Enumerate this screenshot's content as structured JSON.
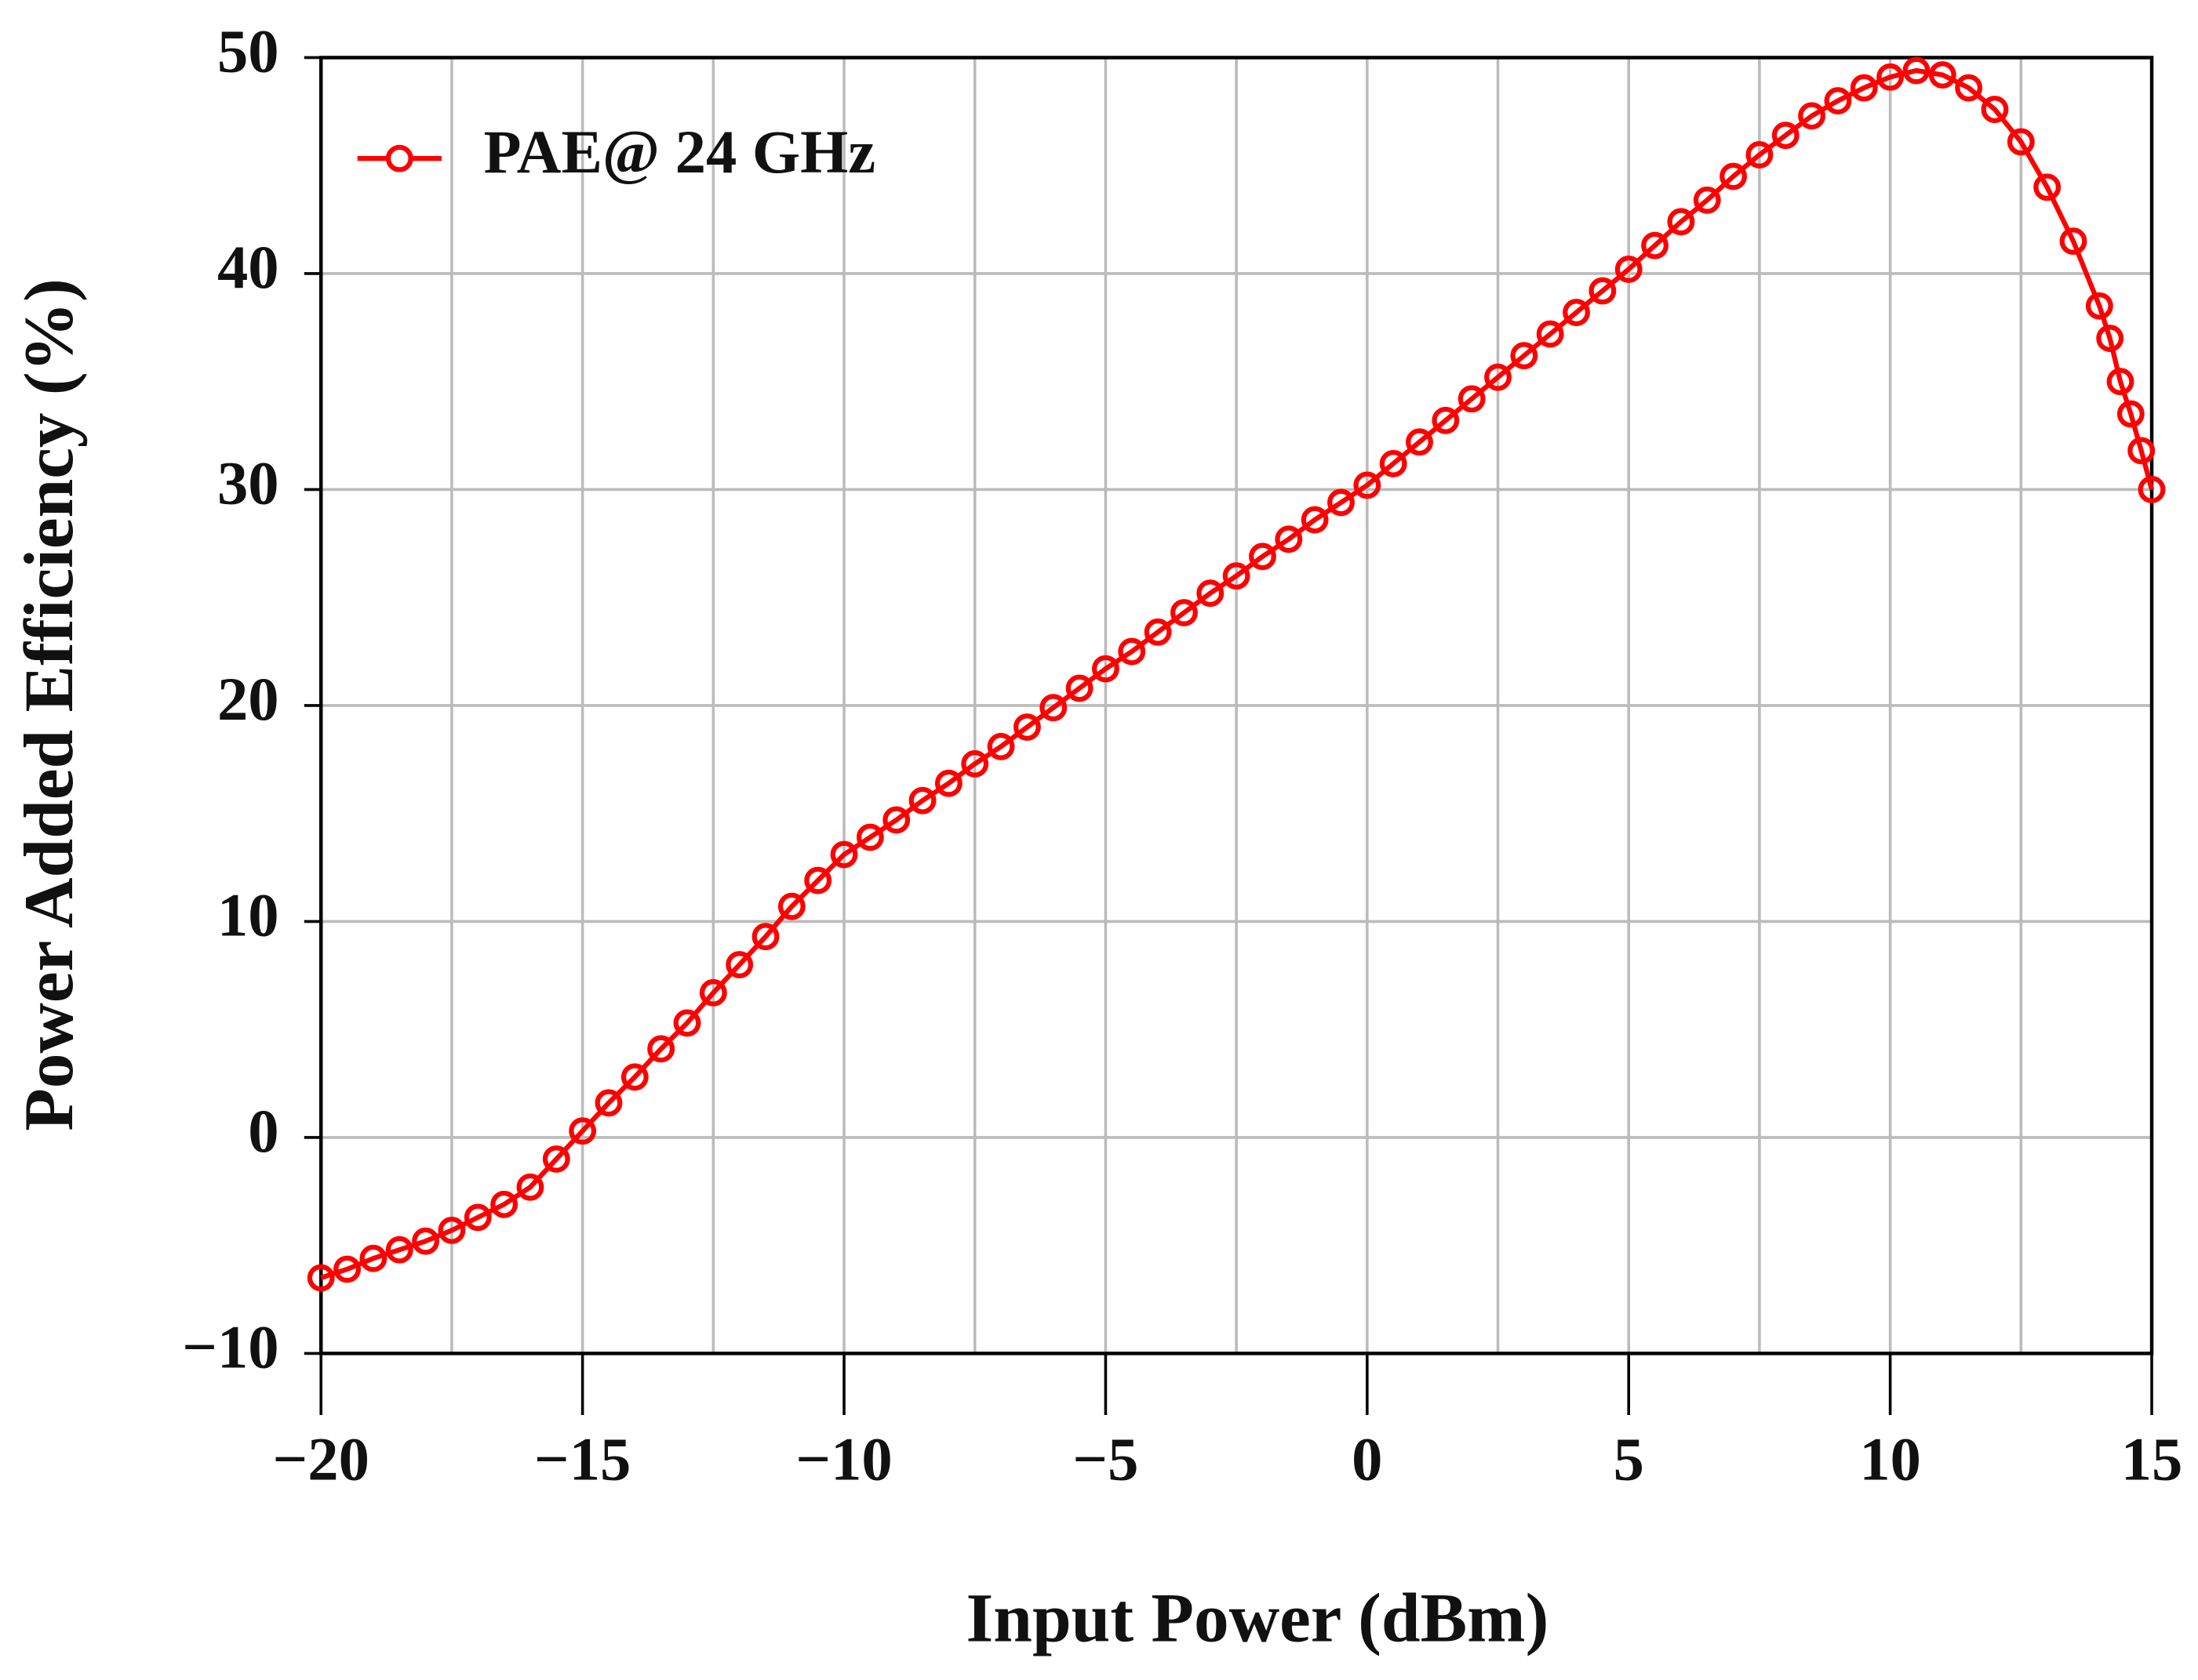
{
  "chart_data": {
    "type": "line",
    "xlabel": "Input Power (dBm)",
    "ylabel": "Power Added Efficiency (%)",
    "x": [
      -20,
      -19.5,
      -19,
      -18.5,
      -18,
      -17.5,
      -17,
      -16.5,
      -16,
      -15.5,
      -15,
      -14.5,
      -14,
      -13.5,
      -13,
      -12.5,
      -12,
      -11.5,
      -11,
      -10.5,
      -10,
      -9.5,
      -9,
      -8.5,
      -8,
      -7.5,
      -7,
      -6.5,
      -6,
      -5.5,
      -5,
      -4.5,
      -4,
      -3.5,
      -3,
      -2.5,
      -2,
      -1.5,
      -1,
      -0.5,
      0,
      0.5,
      1,
      1.5,
      2,
      2.5,
      3,
      3.5,
      4,
      4.5,
      5,
      5.5,
      6,
      6.5,
      7,
      7.5,
      8,
      8.5,
      9,
      9.5,
      10,
      10.5,
      11,
      11.5,
      12,
      12.5,
      13,
      13.5,
      14,
      14.2,
      14.4,
      14.6,
      14.8,
      15
    ],
    "series": [
      {
        "name": "PAE@ 24 GHz",
        "color": "#ff0000",
        "values": [
          -6.5,
          -6.1,
          -5.6,
          -5.2,
          -4.8,
          -4.3,
          -3.7,
          -3.1,
          -2.3,
          -1.0,
          0.3,
          1.6,
          2.8,
          4.1,
          5.3,
          6.7,
          8.0,
          9.3,
          10.7,
          11.9,
          13.1,
          13.9,
          14.7,
          15.6,
          16.4,
          17.3,
          18.1,
          19.0,
          19.9,
          20.8,
          21.7,
          22.5,
          23.4,
          24.3,
          25.2,
          26.0,
          26.9,
          27.7,
          28.6,
          29.4,
          30.2,
          31.2,
          32.2,
          33.2,
          34.2,
          35.2,
          36.2,
          37.2,
          38.2,
          39.2,
          40.2,
          41.3,
          42.4,
          43.4,
          44.5,
          45.5,
          46.4,
          47.3,
          48.0,
          48.6,
          49.1,
          49.4,
          49.2,
          48.6,
          47.6,
          46.1,
          44.0,
          41.5,
          38.5,
          37.0,
          35.0,
          33.5,
          31.8,
          30.0
        ]
      }
    ],
    "xlim": [
      -20,
      15
    ],
    "ylim": [
      -10,
      50
    ],
    "xticks": [
      {
        "value": -20,
        "label": "−20"
      },
      {
        "value": -15,
        "label": "−15"
      },
      {
        "value": -10,
        "label": "−10"
      },
      {
        "value": -5,
        "label": "−5"
      },
      0,
      5,
      10,
      15
    ],
    "yticks": [
      {
        "value": -10,
        "label": "−10"
      },
      0,
      10,
      20,
      30,
      40,
      50
    ],
    "xgrid": [
      -20,
      -17.5,
      -15,
      -12.5,
      -10,
      -7.5,
      -5,
      -2.5,
      0,
      2.5,
      5,
      7.5,
      10,
      12.5,
      15
    ],
    "grid": true,
    "legend": "upper left"
  }
}
